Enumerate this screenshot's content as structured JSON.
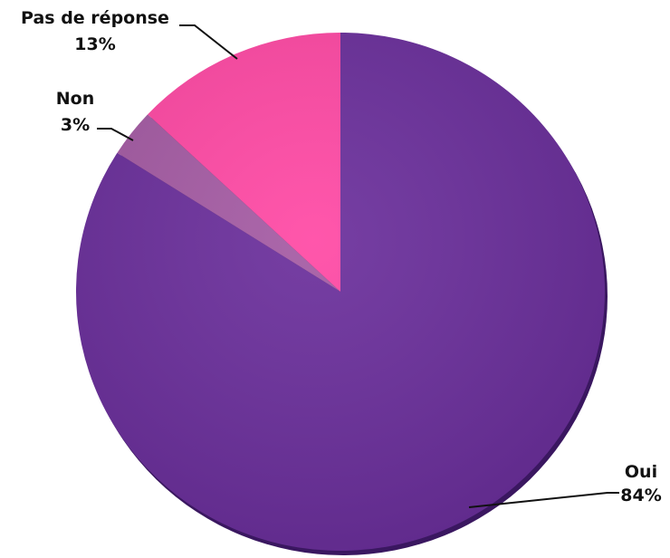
{
  "chart_data": {
    "type": "pie",
    "title": "",
    "slices": [
      {
        "label": "Oui",
        "value": 84,
        "value_label": "84%",
        "color": "#6a2e9b"
      },
      {
        "label": "Non",
        "value": 3,
        "value_label": "3%",
        "color": "#a45aa3"
      },
      {
        "label": "Pas de réponse",
        "value": 13,
        "value_label": "13%",
        "color": "#ff48a4"
      }
    ],
    "start_angle": "12 o'clock",
    "direction": "clockwise",
    "legend": "none"
  }
}
